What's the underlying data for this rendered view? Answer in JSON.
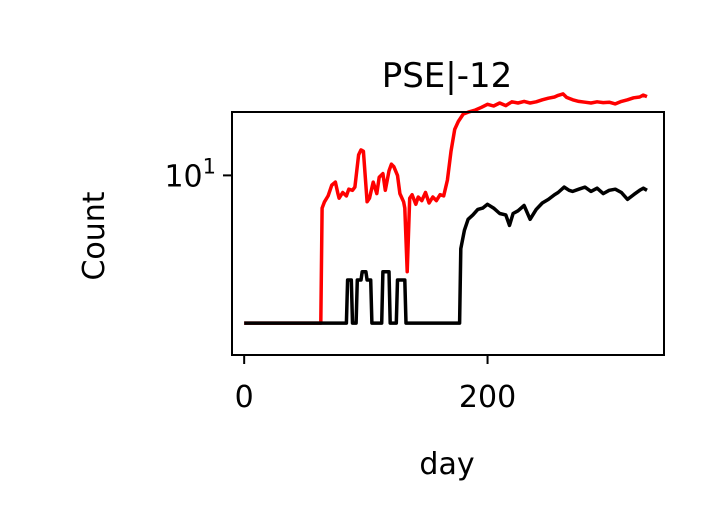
{
  "chart_data": {
    "type": "line",
    "title": "PSE|-12",
    "xlabel": "day",
    "ylabel": "Count",
    "xlim": [
      -10,
      345
    ],
    "ylim_log10": [
      0.15,
      1.3
    ],
    "y_scale": "log",
    "grid": false,
    "x_ticks": [
      {
        "value": 0,
        "label": "0"
      },
      {
        "value": 200,
        "label": "200"
      }
    ],
    "y_ticks": [
      {
        "value": 10,
        "label": "10",
        "exponent": "1"
      }
    ],
    "series": [
      {
        "color": "#ff0000",
        "points": [
          [
            0,
            2
          ],
          [
            63,
            2
          ],
          [
            64,
            7
          ],
          [
            66,
            7.5
          ],
          [
            69,
            8
          ],
          [
            72,
            9
          ],
          [
            75,
            9.3
          ],
          [
            77,
            8.2
          ],
          [
            78,
            7.8
          ],
          [
            81,
            8.3
          ],
          [
            84,
            8
          ],
          [
            86,
            8.6
          ],
          [
            89,
            8.5
          ],
          [
            91,
            8.8
          ],
          [
            94,
            12.5
          ],
          [
            96,
            13.2
          ],
          [
            98,
            13
          ],
          [
            101,
            7.5
          ],
          [
            103,
            7.8
          ],
          [
            106,
            9.3
          ],
          [
            109,
            8.2
          ],
          [
            111,
            9.8
          ],
          [
            114,
            10.2
          ],
          [
            116,
            8.5
          ],
          [
            119,
            10.5
          ],
          [
            121,
            11.3
          ],
          [
            123,
            11
          ],
          [
            126,
            10
          ],
          [
            128,
            8.2
          ],
          [
            131,
            7.5
          ],
          [
            132,
            7
          ],
          [
            134,
            3.5
          ],
          [
            136,
            7.8
          ],
          [
            138,
            8.1
          ],
          [
            141,
            7.3
          ],
          [
            143,
            7.9
          ],
          [
            146,
            7.6
          ],
          [
            149,
            8.3
          ],
          [
            152,
            7.4
          ],
          [
            155,
            7.9
          ],
          [
            158,
            7.6
          ],
          [
            161,
            8.1
          ],
          [
            164,
            8
          ],
          [
            167,
            9.5
          ],
          [
            170,
            13
          ],
          [
            173,
            16.5
          ],
          [
            176,
            18
          ],
          [
            180,
            19.5
          ],
          [
            185,
            20
          ],
          [
            190,
            20.4
          ],
          [
            195,
            21
          ],
          [
            200,
            21.7
          ],
          [
            205,
            21.3
          ],
          [
            210,
            22
          ],
          [
            215,
            21.4
          ],
          [
            220,
            22.3
          ],
          [
            225,
            22
          ],
          [
            230,
            22.4
          ],
          [
            235,
            22
          ],
          [
            240,
            22.3
          ],
          [
            245,
            22.8
          ],
          [
            250,
            23.2
          ],
          [
            255,
            23.5
          ],
          [
            258,
            23.9
          ],
          [
            262,
            24.3
          ],
          [
            265,
            23.4
          ],
          [
            270,
            22.8
          ],
          [
            275,
            22.4
          ],
          [
            280,
            22.2
          ],
          [
            285,
            22
          ],
          [
            290,
            22.3
          ],
          [
            295,
            22.1
          ],
          [
            300,
            22.2
          ],
          [
            305,
            21.8
          ],
          [
            310,
            22.4
          ],
          [
            315,
            22.8
          ],
          [
            320,
            23.3
          ],
          [
            325,
            23.5
          ],
          [
            328,
            24
          ],
          [
            331,
            23.6
          ]
        ]
      },
      {
        "color": "#000000",
        "points": [
          [
            0,
            2
          ],
          [
            84,
            2
          ],
          [
            85,
            3.2
          ],
          [
            88,
            3.2
          ],
          [
            89,
            2
          ],
          [
            92,
            2
          ],
          [
            93,
            3.2
          ],
          [
            96,
            3.2
          ],
          [
            97,
            3.5
          ],
          [
            100,
            3.5
          ],
          [
            101,
            3.2
          ],
          [
            104,
            3.2
          ],
          [
            105,
            2
          ],
          [
            113,
            2
          ],
          [
            114,
            3.5
          ],
          [
            119,
            3.5
          ],
          [
            120,
            2
          ],
          [
            125,
            2
          ],
          [
            126,
            3.2
          ],
          [
            132,
            3.2
          ],
          [
            133,
            2
          ],
          [
            177,
            2
          ],
          [
            178,
            4.5
          ],
          [
            181,
            5.5
          ],
          [
            184,
            6.2
          ],
          [
            188,
            6.5
          ],
          [
            192,
            6.9
          ],
          [
            196,
            7
          ],
          [
            200,
            7.3
          ],
          [
            205,
            7
          ],
          [
            210,
            6.6
          ],
          [
            215,
            6.5
          ],
          [
            218,
            5.8
          ],
          [
            221,
            6.6
          ],
          [
            225,
            6.8
          ],
          [
            230,
            7.2
          ],
          [
            235,
            6.2
          ],
          [
            240,
            6.9
          ],
          [
            245,
            7.4
          ],
          [
            250,
            7.7
          ],
          [
            255,
            8.1
          ],
          [
            258,
            8.3
          ],
          [
            263,
            8.8
          ],
          [
            267,
            8.5
          ],
          [
            270,
            8.4
          ],
          [
            275,
            8.6
          ],
          [
            280,
            8.8
          ],
          [
            285,
            8.4
          ],
          [
            290,
            8.7
          ],
          [
            295,
            8.2
          ],
          [
            300,
            8.5
          ],
          [
            305,
            8.6
          ],
          [
            310,
            8.3
          ],
          [
            315,
            7.7
          ],
          [
            320,
            8.1
          ],
          [
            325,
            8.5
          ],
          [
            328,
            8.7
          ],
          [
            331,
            8.5
          ]
        ]
      }
    ]
  }
}
